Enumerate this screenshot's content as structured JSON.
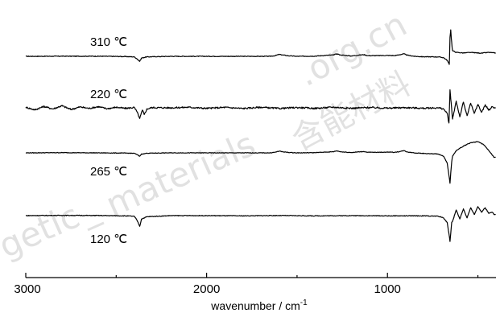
{
  "chart_data": {
    "type": "line",
    "title": "",
    "xlabel": "wavenumber / cm",
    "xlabel_superscript": "-1",
    "ylabel": "",
    "xlim": [
      3000,
      400
    ],
    "x_reversed": true,
    "x_ticks": [
      3000,
      2000,
      1000
    ],
    "x_tick_labels": [
      "3000",
      "2000",
      "1000"
    ],
    "grid": false,
    "legend": "none",
    "series": [
      {
        "name": "310 ℃",
        "x": [
          3000,
          2800,
          2600,
          2450,
          2400,
          2385,
          2370,
          2360,
          2345,
          2330,
          2200,
          2000,
          1800,
          1650,
          1620,
          1600,
          1580,
          1550,
          1500,
          1400,
          1300,
          1280,
          1260,
          1200,
          1150,
          1130,
          1110,
          1050,
          1000,
          960,
          930,
          910,
          890,
          850,
          800,
          720,
          690,
          670,
          658,
          654,
          650,
          647,
          643,
          640,
          620,
          580,
          540,
          480,
          440,
          410
        ],
        "y": [
          0,
          0.01,
          0.01,
          -0.02,
          -0.05,
          -0.22,
          -0.45,
          -0.15,
          -0.1,
          -0.05,
          0,
          0,
          0,
          0,
          0.06,
          0.17,
          0.12,
          0.05,
          0,
          0.02,
          0.12,
          0.22,
          0.12,
          0.03,
          0.12,
          0.15,
          0.06,
          0.06,
          0.08,
          0.06,
          0.15,
          0.22,
          0.1,
          0,
          -0.04,
          -0.05,
          -0.12,
          -0.35,
          -0.72,
          1.7,
          2.35,
          1.6,
          0.9,
          0.5,
          0.35,
          0.3,
          0.34,
          0.28,
          0.35,
          0.3
        ]
      },
      {
        "name": "220 ℃",
        "x": [
          3000,
          2950,
          2900,
          2850,
          2800,
          2750,
          2700,
          2650,
          2600,
          2550,
          2500,
          2450,
          2400,
          2385,
          2370,
          2355,
          2345,
          2330,
          2300,
          2200,
          2100,
          2000,
          1900,
          1800,
          1700,
          1600,
          1500,
          1400,
          1300,
          1200,
          1100,
          1000,
          900,
          800,
          720,
          690,
          670,
          660,
          654,
          650,
          645,
          640,
          620,
          600,
          580,
          560,
          540,
          520,
          500,
          480,
          460,
          440,
          420,
          410
        ],
        "y": [
          0.05,
          -0.18,
          0.12,
          -0.1,
          0.18,
          -0.15,
          0.08,
          -0.05,
          0.1,
          -0.08,
          0.05,
          -0.05,
          0.03,
          -0.35,
          -0.95,
          -0.2,
          -0.6,
          -0.1,
          0.02,
          0,
          0.05,
          -0.05,
          0.04,
          -0.06,
          0.05,
          -0.06,
          0.03,
          -0.05,
          0.06,
          -0.04,
          0.03,
          -0.03,
          0.02,
          -0.04,
          0,
          -0.1,
          -0.5,
          -1.35,
          1.6,
          0.8,
          -0.1,
          -1.0,
          0.6,
          -0.8,
          0.5,
          -0.7,
          0.4,
          -0.5,
          0.3,
          -0.4,
          0.25,
          -0.2,
          0.1,
          0
        ]
      },
      {
        "name": "265 ℃",
        "x": [
          3000,
          2800,
          2600,
          2450,
          2400,
          2385,
          2370,
          2360,
          2345,
          2330,
          2200,
          2000,
          1800,
          1650,
          1620,
          1600,
          1580,
          1550,
          1500,
          1400,
          1300,
          1280,
          1260,
          1200,
          1150,
          1130,
          1110,
          1050,
          1000,
          960,
          930,
          910,
          890,
          850,
          800,
          720,
          690,
          670,
          658,
          654,
          650,
          645,
          640,
          620,
          580,
          540,
          500,
          470,
          450,
          430,
          410
        ],
        "y": [
          0,
          0.02,
          0,
          -0.02,
          -0.04,
          -0.15,
          -0.3,
          -0.1,
          -0.08,
          -0.03,
          0,
          0,
          0,
          0,
          0.06,
          0.15,
          0.1,
          0.04,
          0,
          0.02,
          0.1,
          0.18,
          0.1,
          0.03,
          0.1,
          0.12,
          0.05,
          0.05,
          0.07,
          0.05,
          0.12,
          0.2,
          0.08,
          0,
          -0.05,
          -0.1,
          -0.3,
          -0.9,
          -2.2,
          -2.7,
          -1.8,
          -0.8,
          -0.3,
          0.2,
          0.6,
          0.9,
          1.0,
          0.75,
          0.4,
          0.0,
          -0.4
        ]
      },
      {
        "name": "120 ℃",
        "x": [
          3000,
          2800,
          2600,
          2450,
          2400,
          2385,
          2370,
          2360,
          2345,
          2330,
          2200,
          2000,
          1800,
          1600,
          1400,
          1200,
          1000,
          800,
          720,
          690,
          670,
          660,
          654,
          650,
          645,
          640,
          620,
          600,
          580,
          560,
          540,
          520,
          500,
          480,
          460,
          440,
          420,
          410
        ],
        "y": [
          0,
          0.02,
          0.01,
          -0.02,
          -0.06,
          -0.4,
          -0.95,
          -0.3,
          -0.2,
          -0.1,
          0,
          0,
          -0.02,
          0.01,
          -0.02,
          0,
          -0.02,
          -0.02,
          -0.05,
          -0.2,
          -0.6,
          -1.6,
          -2.3,
          -1.6,
          -0.6,
          -0.5,
          0.5,
          -0.3,
          0.6,
          -0.2,
          0.7,
          0.1,
          0.8,
          0.3,
          0.7,
          0.2,
          0.3,
          0.1
        ]
      }
    ],
    "annotations": [
      {
        "text": "310 ℃",
        "series": 0
      },
      {
        "text": "220 ℃",
        "series": 1
      },
      {
        "text": "265 ℃",
        "series": 2
      },
      {
        "text": "120 ℃",
        "series": 3
      }
    ]
  },
  "watermark": {
    "latin_left": "rgetic",
    "latin_underscore": "_",
    "latin_mid": "materials",
    "latin_right": ".org.cn",
    "cjk": "含能材料"
  },
  "colors": {
    "line": "#000000",
    "watermark": "#c8c8c8"
  }
}
